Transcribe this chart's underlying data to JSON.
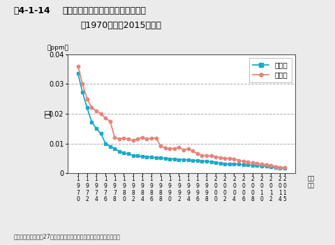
{
  "title_bold": "図4-1-14",
  "title_normal": "　二酸化硫黄濃度の年平均値の推移",
  "title_line2": "（1970年度〜2015年度）",
  "ylabel": "濃度",
  "yunit": "（ppm）",
  "xlabel_right": "（年\n度）",
  "source": "資料：環境省「平成27年度大気汚染状況について（報道発表資料）」",
  "years": [
    1970,
    1971,
    1972,
    1973,
    1974,
    1975,
    1976,
    1977,
    1978,
    1979,
    1980,
    1981,
    1982,
    1983,
    1984,
    1985,
    1986,
    1987,
    1988,
    1989,
    1990,
    1991,
    1992,
    1993,
    1994,
    1995,
    1996,
    1997,
    1998,
    1999,
    2000,
    2001,
    2002,
    2003,
    2004,
    2005,
    2006,
    2007,
    2008,
    2009,
    2010,
    2011,
    2012,
    2013,
    2014,
    2015
  ],
  "ippan": [
    0.0336,
    0.0272,
    0.022,
    0.0172,
    0.015,
    0.0133,
    0.01,
    0.009,
    0.0083,
    0.0073,
    0.0068,
    0.0065,
    0.006,
    0.0058,
    0.0056,
    0.0055,
    0.0054,
    0.0052,
    0.0051,
    0.005,
    0.0048,
    0.0047,
    0.0046,
    0.0045,
    0.0044,
    0.0043,
    0.0042,
    0.0041,
    0.004,
    0.0038,
    0.0036,
    0.0033,
    0.0031,
    0.003,
    0.0031,
    0.003,
    0.0029,
    0.0028,
    0.0027,
    0.0026,
    0.0024,
    0.0023,
    0.0021,
    0.0019,
    0.0017,
    0.0016
  ],
  "jihai": [
    0.036,
    0.03,
    0.025,
    0.022,
    0.021,
    0.02,
    0.0185,
    0.0175,
    0.012,
    0.0115,
    0.0118,
    0.0115,
    0.011,
    0.0115,
    0.012,
    0.0115,
    0.0118,
    0.0118,
    0.0092,
    0.0085,
    0.0082,
    0.0083,
    0.0087,
    0.0078,
    0.0082,
    0.0075,
    0.0065,
    0.006,
    0.006,
    0.0058,
    0.0055,
    0.0053,
    0.005,
    0.005,
    0.0048,
    0.0043,
    0.004,
    0.0038,
    0.0035,
    0.0033,
    0.003,
    0.0029,
    0.0026,
    0.0022,
    0.002,
    0.0019
  ],
  "ippan_color": "#1AAAC8",
  "jihai_color": "#E8837A",
  "ippan_label": "一般局",
  "jihai_label": "自排局",
  "ylim": [
    0,
    0.04
  ],
  "yticks": [
    0,
    0.01,
    0.02,
    0.03,
    0.04
  ],
  "ytick_labels": [
    "0",
    "0.01",
    "0.02",
    "0.03",
    "0.04"
  ],
  "xtick_years": [
    1970,
    1972,
    1974,
    1976,
    1978,
    1980,
    1982,
    1984,
    1986,
    1988,
    1990,
    1992,
    1994,
    1996,
    1998,
    2000,
    2002,
    2004,
    2006,
    2008,
    2010,
    2012,
    2014,
    2015
  ],
  "bg_color": "#ebebeb",
  "plot_bg_color": "#ffffff"
}
